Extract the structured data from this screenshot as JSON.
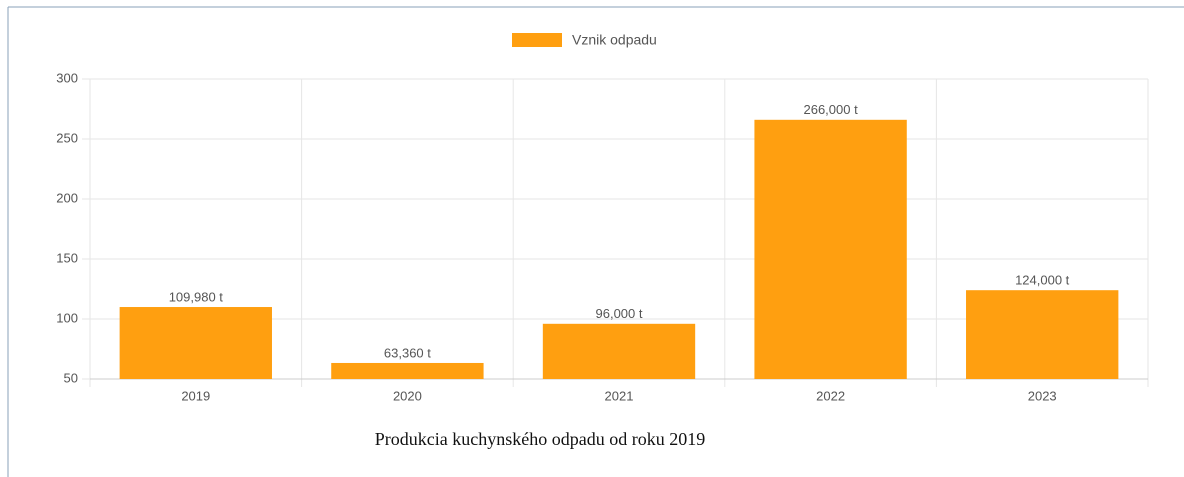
{
  "chart_data": {
    "type": "bar",
    "categories": [
      "2019",
      "2020",
      "2021",
      "2022",
      "2023"
    ],
    "series": [
      {
        "name": "Vznik odpadu",
        "color": "#ff9f10",
        "values": [
          109.98,
          63.36,
          96,
          266,
          124
        ],
        "value_labels": [
          "109,980 t",
          "63,360 t",
          "96,000 t",
          "266,000 t",
          "124,000 t"
        ]
      }
    ],
    "ylim": [
      50,
      300
    ],
    "yticks": [
      50,
      100,
      150,
      200,
      250,
      300
    ],
    "grid": true,
    "legend": "top",
    "caption": "Produkcia kuchynského odpadu od roku 2019"
  }
}
